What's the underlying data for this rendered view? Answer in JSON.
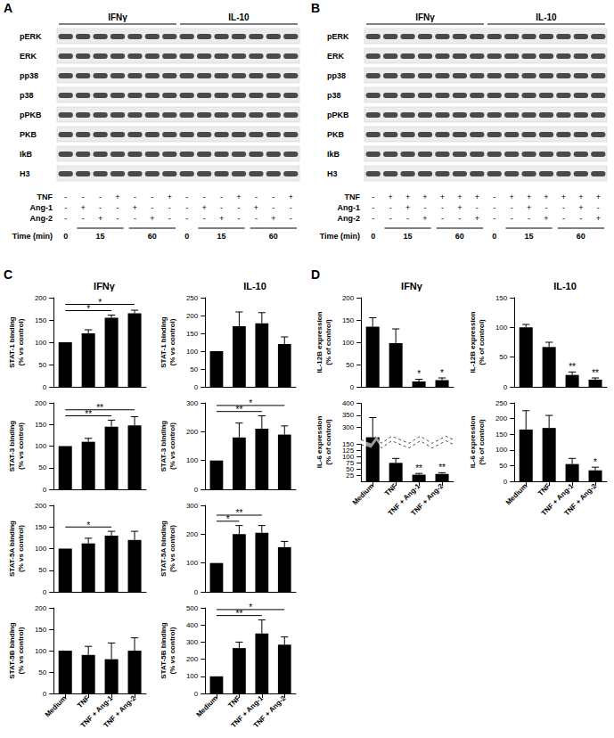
{
  "blots": [
    {
      "panel": "A",
      "groups": [
        "IFNγ",
        "IL-10"
      ],
      "rows": [
        "pERK",
        "ERK",
        "pp38",
        "p38",
        "pPKB",
        "PKB",
        "IkB",
        "H3"
      ],
      "treatments": [
        {
          "name": "TNF",
          "lanes": [
            "-",
            "-",
            "-",
            "+",
            "-",
            "-",
            "+",
            "-",
            "-",
            "-",
            "+",
            "-",
            "-",
            "+"
          ]
        },
        {
          "name": "Ang-1",
          "lanes": [
            "-",
            "+",
            "-",
            "-",
            "+",
            "-",
            "-",
            "-",
            "+",
            "-",
            "-",
            "+",
            "-",
            "-"
          ]
        },
        {
          "name": "Ang-2",
          "lanes": [
            "-",
            "-",
            "+",
            "-",
            "-",
            "+",
            "-",
            "-",
            "-",
            "+",
            "-",
            "-",
            "+",
            "-"
          ]
        }
      ],
      "time_label": "Time (min)",
      "times": [
        {
          "label": "0",
          "lanes": 1
        },
        {
          "label": "15",
          "lanes": 3
        },
        {
          "label": "60",
          "lanes": 3
        },
        {
          "label": "0",
          "lanes": 1
        },
        {
          "label": "15",
          "lanes": 3
        },
        {
          "label": "60",
          "lanes": 3
        }
      ]
    },
    {
      "panel": "B",
      "groups": [
        "IFNγ",
        "IL-10"
      ],
      "rows": [
        "pERK",
        "ERK",
        "pp38",
        "p38",
        "pPKB",
        "PKB",
        "IkB",
        "H3"
      ],
      "treatments": [
        {
          "name": "TNF",
          "lanes": [
            "-",
            "+",
            "+",
            "+",
            "+",
            "+",
            "+",
            "-",
            "+",
            "+",
            "+",
            "+",
            "+",
            "+"
          ]
        },
        {
          "name": "Ang-1",
          "lanes": [
            "-",
            "-",
            "+",
            "-",
            "-",
            "+",
            "-",
            "-",
            "-",
            "+",
            "-",
            "-",
            "+",
            "-"
          ]
        },
        {
          "name": "Ang-2",
          "lanes": [
            "-",
            "-",
            "-",
            "+",
            "-",
            "-",
            "+",
            "-",
            "-",
            "-",
            "+",
            "-",
            "-",
            "+"
          ]
        }
      ],
      "time_label": "Time (min)",
      "times": [
        {
          "label": "0",
          "lanes": 1
        },
        {
          "label": "15",
          "lanes": 3
        },
        {
          "label": "60",
          "lanes": 3
        },
        {
          "label": "0",
          "lanes": 1
        },
        {
          "label": "15",
          "lanes": 3
        },
        {
          "label": "60",
          "lanes": 3
        }
      ]
    }
  ],
  "chart_data": [
    {
      "panel": "C",
      "type": "bar",
      "title": "IFNγ",
      "ylabel": "STAT-1 binding\n(% vs control)",
      "categories": [
        "Medium",
        "TNF",
        "TNF + Ang-1",
        "TNF + Ang-2"
      ],
      "values": [
        100,
        120,
        155,
        165
      ],
      "errors": [
        0,
        8,
        6,
        7
      ],
      "ylim": [
        0,
        200
      ],
      "yticks": [
        0,
        50,
        100,
        150,
        200
      ],
      "color": "#000000",
      "grid": false,
      "tick_labels": "y",
      "significance": [
        {
          "from": "Medium",
          "to": "TNF + Ang-1",
          "label": "*"
        },
        {
          "from": "Medium",
          "to": "TNF + Ang-2",
          "label": "*"
        }
      ]
    },
    {
      "panel": "C",
      "type": "bar",
      "title": "IL-10",
      "ylabel": "STAT-1 binding\n(% vs control)",
      "categories": [
        "Medium",
        "TNF",
        "TNF + Ang-1",
        "TNF + Ang-2"
      ],
      "values": [
        100,
        170,
        178,
        120
      ],
      "errors": [
        0,
        40,
        30,
        20
      ],
      "ylim": [
        0,
        250
      ],
      "yticks": [
        0,
        50,
        100,
        150,
        200,
        250
      ],
      "color": "#000000",
      "grid": false,
      "tick_labels": "y"
    },
    {
      "panel": "C",
      "type": "bar",
      "ylabel": "STAT-3 binding\n(% vs control)",
      "categories": [
        "Medium",
        "TNF",
        "TNF + Ang-1",
        "TNF + Ang-2"
      ],
      "values": [
        100,
        110,
        145,
        148
      ],
      "errors": [
        0,
        8,
        15,
        20
      ],
      "ylim": [
        0,
        200
      ],
      "yticks": [
        0,
        50,
        100,
        150,
        200
      ],
      "color": "#000000",
      "grid": false,
      "tick_labels": "y",
      "significance": [
        {
          "from": "Medium",
          "to": "TNF + Ang-1",
          "label": "**"
        },
        {
          "from": "Medium",
          "to": "TNF + Ang-2",
          "label": "**"
        }
      ]
    },
    {
      "panel": "C",
      "type": "bar",
      "ylabel": "STAT-3 binding\n(% vs control)",
      "categories": [
        "Medium",
        "TNF",
        "TNF + Ang-1",
        "TNF + Ang-2"
      ],
      "values": [
        100,
        180,
        210,
        190
      ],
      "errors": [
        0,
        50,
        45,
        30
      ],
      "ylim": [
        0,
        300
      ],
      "yticks": [
        0,
        100,
        200,
        300
      ],
      "color": "#000000",
      "grid": false,
      "tick_labels": "y",
      "significance": [
        {
          "from": "Medium",
          "to": "TNF + Ang-1",
          "label": "**"
        },
        {
          "from": "Medium",
          "to": "TNF + Ang-2",
          "label": "*"
        }
      ]
    },
    {
      "panel": "C",
      "type": "bar",
      "ylabel": "STAT-5A binding\n(% vs control)",
      "categories": [
        "Medium",
        "TNF",
        "TNF + Ang-1",
        "TNF + Ang-2"
      ],
      "values": [
        100,
        112,
        130,
        120
      ],
      "errors": [
        0,
        12,
        10,
        20
      ],
      "ylim": [
        0,
        200
      ],
      "yticks": [
        0,
        50,
        100,
        150,
        200
      ],
      "color": "#000000",
      "grid": false,
      "tick_labels": "y",
      "significance": [
        {
          "from": "Medium",
          "to": "TNF + Ang-1",
          "label": "*"
        }
      ]
    },
    {
      "panel": "C",
      "type": "bar",
      "ylabel": "STAT-5A binding\n(% vs control)",
      "categories": [
        "Medium",
        "TNF",
        "TNF + Ang-1",
        "TNF + Ang-2"
      ],
      "values": [
        100,
        200,
        205,
        155
      ],
      "errors": [
        0,
        30,
        25,
        20
      ],
      "ylim": [
        0,
        300
      ],
      "yticks": [
        0,
        100,
        200,
        300
      ],
      "color": "#000000",
      "grid": false,
      "tick_labels": "y",
      "significance": [
        {
          "from": "Medium",
          "to": "TNF",
          "label": "*"
        },
        {
          "from": "Medium",
          "to": "TNF + Ang-1",
          "label": "**"
        }
      ]
    },
    {
      "panel": "C",
      "type": "bar",
      "ylabel": "STAT-5B binding\n(% vs control)",
      "categories": [
        "Medium",
        "TNF",
        "TNF + Ang-1",
        "TNF + Ang-2"
      ],
      "values": [
        100,
        90,
        80,
        100
      ],
      "errors": [
        0,
        20,
        38,
        30
      ],
      "ylim": [
        0,
        200
      ],
      "yticks": [
        0,
        50,
        100,
        150,
        200
      ],
      "color": "#000000",
      "grid": false
    },
    {
      "panel": "C",
      "type": "bar",
      "ylabel": "STAT-5B binding\n(% vs control)",
      "categories": [
        "Medium",
        "TNF",
        "TNF + Ang-1",
        "TNF + Ang-2"
      ],
      "values": [
        100,
        265,
        350,
        285
      ],
      "errors": [
        0,
        35,
        80,
        45
      ],
      "ylim": [
        0,
        500
      ],
      "yticks": [
        0,
        100,
        200,
        300,
        400,
        500
      ],
      "color": "#000000",
      "grid": false,
      "significance": [
        {
          "from": "Medium",
          "to": "TNF + Ang-1",
          "label": "**"
        },
        {
          "from": "Medium",
          "to": "TNF + Ang-2",
          "label": "*"
        }
      ]
    },
    {
      "panel": "D",
      "type": "bar",
      "title": "IFNγ",
      "ylabel": "IL-12B expression\n(% of control)",
      "categories": [
        "Medium",
        "TNF",
        "TNF + Ang-1",
        "TNF + Ang-2"
      ],
      "values": [
        135,
        98,
        12,
        15
      ],
      "errors": [
        20,
        32,
        5,
        5
      ],
      "ylim": [
        0,
        200
      ],
      "yticks": [
        0,
        50,
        100,
        150,
        200
      ],
      "color": "#000000",
      "grid": false,
      "tick_labels": "y",
      "annotations": [
        {
          "category": "TNF + Ang-1",
          "label": "*"
        },
        {
          "category": "TNF + Ang-2",
          "label": "*"
        }
      ]
    },
    {
      "panel": "D",
      "type": "bar",
      "title": "IL-10",
      "ylabel": "IL-12B expression\n(% of control)",
      "categories": [
        "Medium",
        "TNF",
        "TNF + Ang-1",
        "TNF + Ang-2"
      ],
      "values": [
        100,
        67,
        20,
        12
      ],
      "errors": [
        5,
        8,
        5,
        3
      ],
      "ylim": [
        0,
        150
      ],
      "yticks": [
        0,
        50,
        100,
        150
      ],
      "color": "#000000",
      "grid": false,
      "tick_labels": "y",
      "annotations": [
        {
          "category": "TNF + Ang-1",
          "label": "**"
        },
        {
          "category": "TNF + Ang-2",
          "label": "**"
        }
      ]
    },
    {
      "panel": "D",
      "type": "bar",
      "ylabel": "IL-6 expression\n(% of control)",
      "categories": [
        "Medium",
        "TNF",
        "TNF + Ang-1",
        "TNF + Ang-2"
      ],
      "values": [
        260,
        75,
        27,
        30
      ],
      "errors": [
        80,
        18,
        5,
        5
      ],
      "ylim": [
        0,
        400
      ],
      "yticks": [
        0,
        25,
        50,
        75,
        100,
        125,
        150,
        300,
        350,
        400
      ],
      "ybreak": [
        150,
        250
      ],
      "color": "#000000",
      "grid": false,
      "annotations": [
        {
          "category": "TNF + Ang-1",
          "label": "**"
        },
        {
          "category": "TNF + Ang-2",
          "label": "**"
        }
      ]
    },
    {
      "panel": "D",
      "type": "bar",
      "ylabel": "IL-6 expression\n(% of control)",
      "categories": [
        "Medium",
        "TNF",
        "TNF + Ang-1",
        "TNF + Ang-2"
      ],
      "values": [
        165,
        170,
        55,
        35
      ],
      "errors": [
        60,
        40,
        18,
        10
      ],
      "ylim": [
        0,
        250
      ],
      "yticks": [
        0,
        50,
        100,
        150,
        200,
        250
      ],
      "color": "#000000",
      "grid": false,
      "annotations": [
        {
          "category": "TNF + Ang-2",
          "label": "*"
        }
      ]
    }
  ]
}
